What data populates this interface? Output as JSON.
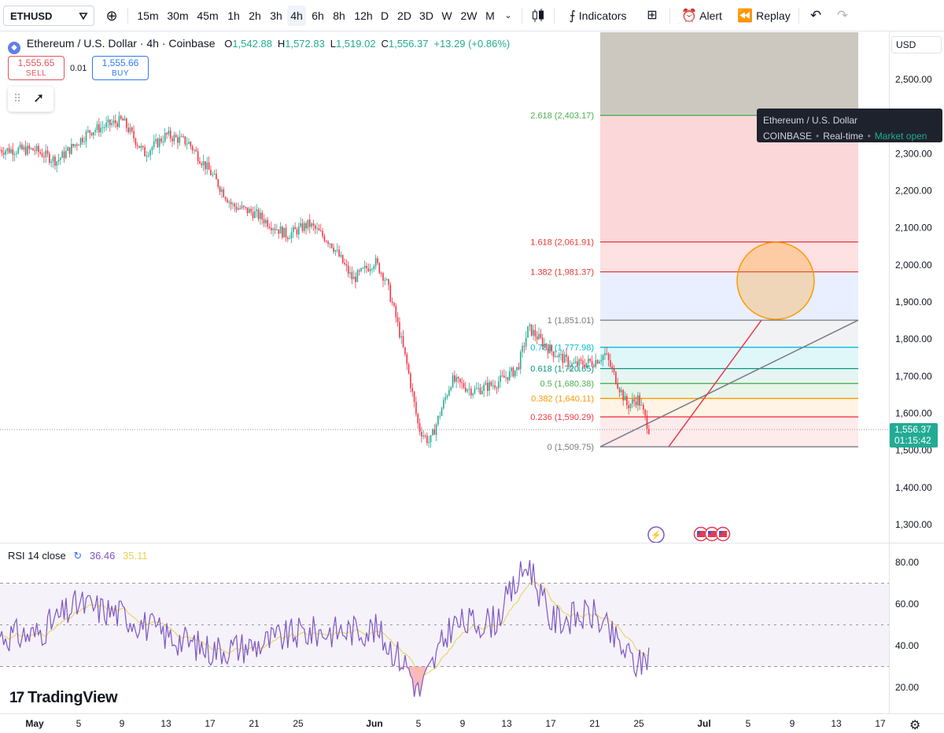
{
  "toolbar": {
    "symbol": "ETHUSD",
    "intervals": [
      "15m",
      "30m",
      "45m",
      "1h",
      "2h",
      "3h",
      "4h",
      "6h",
      "8h",
      "12h",
      "D",
      "2D",
      "3D",
      "W",
      "2W",
      "M"
    ],
    "active_interval": "4h",
    "indicators_label": "Indicators",
    "alert_label": "Alert",
    "replay_label": "Replay"
  },
  "legend": {
    "title": "Ethereum / U.S. Dollar · 4h · Coinbase",
    "o_label": "O",
    "o": "1,542.88",
    "h_label": "H",
    "h": "1,572.83",
    "l_label": "L",
    "l": "1,519.02",
    "c_label": "C",
    "c": "1,556.37",
    "change": "+13.29 (+0.86%)"
  },
  "trade": {
    "sell_price": "1,555.65",
    "sell_label": "SELL",
    "spread": "0.01",
    "buy_price": "1,555.66",
    "buy_label": "BUY"
  },
  "tooltip": {
    "name": "Ethereum / U.S. Dollar",
    "exchange": "COINBASE",
    "feed": "Real-time",
    "status": "Market open"
  },
  "currency": "USD",
  "last_price": {
    "price": "1,556.37",
    "countdown": "01:15:42"
  },
  "rsi": {
    "label": "RSI 14 close",
    "value": "36.46",
    "ma_value": "35.11"
  },
  "brand": "TradingView",
  "colors": {
    "up": "#22ab94",
    "down": "#f23645",
    "rsi": "#7e57c2",
    "rsi_ma": "#e8d24f"
  },
  "chart_data": {
    "type": "candlestick",
    "price_axis_ticks": [
      "2,500.00",
      "2,400.00",
      "2,300.00",
      "2,200.00",
      "2,100.00",
      "2,000.00",
      "1,900.00",
      "1,800.00",
      "1,700.00",
      "1,600.00",
      "1,500.00",
      "1,400.00",
      "1,300.00"
    ],
    "rsi_axis_ticks": [
      "80.00",
      "60.00",
      "40.00",
      "20.00"
    ],
    "time_axis_labels": [
      "May",
      "5",
      "9",
      "13",
      "17",
      "21",
      "25",
      "Jun",
      "5",
      "9",
      "13",
      "17",
      "21",
      "25",
      "Jul",
      "5",
      "9",
      "13",
      "17"
    ],
    "fib_levels": [
      {
        "label": "0 (1,509.75)",
        "ratio": 0,
        "price": 1509.75,
        "color": "#787b86"
      },
      {
        "label": "0.236 (1,590.29)",
        "ratio": 0.236,
        "price": 1590.29,
        "color": "#f23645"
      },
      {
        "label": "0.382 (1,640.11)",
        "ratio": 0.382,
        "price": 1640.11,
        "color": "#ff9800"
      },
      {
        "label": "0.5 (1,680.38)",
        "ratio": 0.5,
        "price": 1680.38,
        "color": "#4caf50"
      },
      {
        "label": "0.618 (1,720.65)",
        "ratio": 0.618,
        "price": 1720.65,
        "color": "#089981"
      },
      {
        "label": "0.786 (1,777.98)",
        "ratio": 0.786,
        "price": 1777.98,
        "color": "#00bcd4"
      },
      {
        "label": "1 (1,851.01)",
        "ratio": 1,
        "price": 1851.01,
        "color": "#787b86"
      },
      {
        "label": "1.382 (1,981.37)",
        "ratio": 1.382,
        "price": 1981.37,
        "color": "#e53935"
      },
      {
        "label": "1.618 (2,061.91)",
        "ratio": 1.618,
        "price": 2061.91,
        "color": "#e53935"
      },
      {
        "label": "2.618 (2,403.17)",
        "ratio": 2.618,
        "price": 2403.17,
        "color": "#4caf50"
      }
    ],
    "trend": [
      {
        "date": "May 1",
        "close": 2310
      },
      {
        "date": "May 3",
        "close": 2280
      },
      {
        "date": "May 6",
        "close": 2360
      },
      {
        "date": "May 9",
        "close": 2390
      },
      {
        "date": "May 11",
        "close": 2300
      },
      {
        "date": "May 13",
        "close": 2350
      },
      {
        "date": "May 15",
        "close": 2330
      },
      {
        "date": "May 17",
        "close": 2250
      },
      {
        "date": "May 19",
        "close": 2160
      },
      {
        "date": "May 21",
        "close": 2140
      },
      {
        "date": "May 24",
        "close": 2080
      },
      {
        "date": "May 26",
        "close": 2110
      },
      {
        "date": "May 28",
        "close": 2060
      },
      {
        "date": "May 30",
        "close": 1960
      },
      {
        "date": "Jun 1",
        "close": 2010
      },
      {
        "date": "Jun 2",
        "close": 1960
      },
      {
        "date": "Jun 3",
        "close": 1850
      },
      {
        "date": "Jun 4",
        "close": 1720
      },
      {
        "date": "Jun 5",
        "close": 1560
      },
      {
        "date": "Jun 6",
        "close": 1520
      },
      {
        "date": "Jun 8",
        "close": 1690
      },
      {
        "date": "Jun 10",
        "close": 1660
      },
      {
        "date": "Jun 12",
        "close": 1680
      },
      {
        "date": "Jun 14",
        "close": 1720
      },
      {
        "date": "Jun 15",
        "close": 1830
      },
      {
        "date": "Jun 17",
        "close": 1770
      },
      {
        "date": "Jun 19",
        "close": 1730
      },
      {
        "date": "Jun 21",
        "close": 1740
      },
      {
        "date": "Jun 22",
        "close": 1760
      },
      {
        "date": "Jun 23",
        "close": 1690
      },
      {
        "date": "Jun 24",
        "close": 1620
      },
      {
        "date": "Jun 25",
        "close": 1640
      },
      {
        "date": "Jun 26",
        "close": 1556
      }
    ],
    "rsi_series": [
      {
        "date": "May 1",
        "value": 45
      },
      {
        "date": "May 5",
        "value": 60
      },
      {
        "date": "May 9",
        "value": 55
      },
      {
        "date": "May 13",
        "value": 45
      },
      {
        "date": "May 17",
        "value": 38
      },
      {
        "date": "May 21",
        "value": 40
      },
      {
        "date": "May 25",
        "value": 46
      },
      {
        "date": "Jun 1",
        "value": 48
      },
      {
        "date": "Jun 4",
        "value": 30
      },
      {
        "date": "Jun 5",
        "value": 17
      },
      {
        "date": "Jun 8",
        "value": 50
      },
      {
        "date": "Jun 12",
        "value": 52
      },
      {
        "date": "Jun 15",
        "value": 80
      },
      {
        "date": "Jun 17",
        "value": 52
      },
      {
        "date": "Jun 21",
        "value": 55
      },
      {
        "date": "Jun 23",
        "value": 42
      },
      {
        "date": "Jun 25",
        "value": 30
      },
      {
        "date": "Jun 26",
        "value": 36.46
      }
    ]
  }
}
